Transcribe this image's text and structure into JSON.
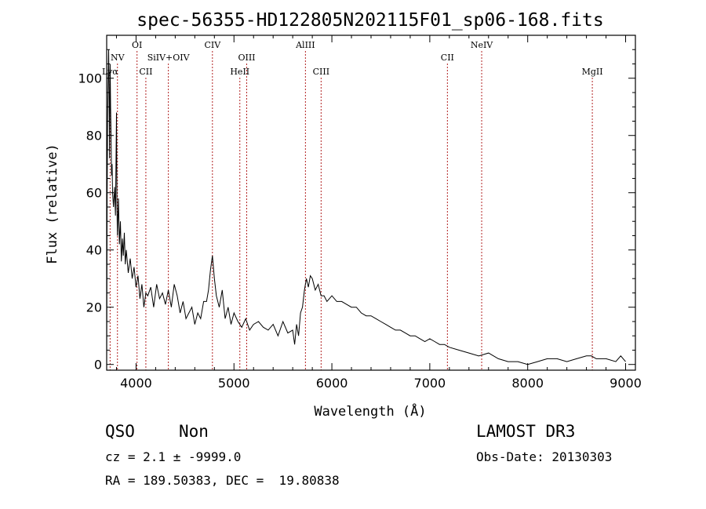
{
  "chart_data": {
    "type": "line",
    "title": "spec-56355-HD122805N202115F01_sp06-168.fits",
    "xlabel": "Wavelength (Å)",
    "ylabel": "Flux (relative)",
    "xlim": [
      3700,
      9100
    ],
    "ylim": [
      -2,
      115
    ],
    "xticks": [
      4000,
      5000,
      6000,
      7000,
      8000,
      9000
    ],
    "yticks": [
      0,
      20,
      40,
      60,
      80,
      100
    ],
    "grid": false,
    "series": [
      {
        "color": "#000000",
        "x": [
          3700,
          3705,
          3710,
          3715,
          3720,
          3725,
          3730,
          3735,
          3740,
          3745,
          3750,
          3755,
          3760,
          3770,
          3780,
          3790,
          3800,
          3805,
          3810,
          3820,
          3830,
          3840,
          3850,
          3860,
          3870,
          3880,
          3890,
          3900,
          3920,
          3940,
          3960,
          3980,
          4000,
          4020,
          4040,
          4060,
          4080,
          4100,
          4120,
          4150,
          4180,
          4210,
          4240,
          4270,
          4300,
          4330,
          4360,
          4390,
          4420,
          4450,
          4480,
          4510,
          4540,
          4570,
          4600,
          4630,
          4660,
          4690,
          4720,
          4740,
          4760,
          4780,
          4800,
          4820,
          4850,
          4880,
          4910,
          4940,
          4970,
          5000,
          5040,
          5080,
          5120,
          5160,
          5200,
          5250,
          5300,
          5350,
          5400,
          5450,
          5500,
          5550,
          5600,
          5620,
          5640,
          5660,
          5680,
          5700,
          5720,
          5740,
          5760,
          5780,
          5800,
          5830,
          5860,
          5890,
          5920,
          5950,
          6000,
          6050,
          6100,
          6150,
          6200,
          6250,
          6300,
          6350,
          6400,
          6450,
          6500,
          6550,
          6600,
          6650,
          6700,
          6750,
          6800,
          6850,
          6900,
          6950,
          7000,
          7050,
          7100,
          7150,
          7200,
          7300,
          7400,
          7500,
          7600,
          7700,
          7800,
          7900,
          8000,
          8100,
          8200,
          8300,
          8400,
          8500,
          8600,
          8650,
          8700,
          8800,
          8900,
          8950,
          9000
        ],
        "y": [
          2,
          60,
          85,
          100,
          110,
          95,
          72,
          105,
          90,
          80,
          66,
          70,
          60,
          55,
          62,
          52,
          88,
          55,
          45,
          58,
          42,
          50,
          36,
          44,
          38,
          46,
          35,
          40,
          32,
          37,
          30,
          34,
          27,
          31,
          23,
          28,
          20,
          25,
          24,
          27,
          20,
          28,
          23,
          25,
          21,
          26,
          20,
          28,
          24,
          18,
          22,
          16,
          18,
          20,
          14,
          18,
          16,
          22,
          22,
          26,
          33,
          38,
          30,
          24,
          20,
          26,
          16,
          20,
          14,
          18,
          15,
          13,
          16,
          12,
          14,
          15,
          13,
          12,
          14,
          10,
          15,
          11,
          12,
          7,
          14,
          10,
          18,
          20,
          26,
          30,
          27,
          31,
          30,
          26,
          28,
          24,
          24,
          22,
          24,
          22,
          22,
          21,
          20,
          20,
          18,
          17,
          17,
          16,
          15,
          14,
          13,
          12,
          12,
          11,
          10,
          10,
          9,
          8,
          9,
          8,
          7,
          7,
          6,
          5,
          4,
          3,
          4,
          2,
          1,
          1,
          0,
          1,
          2,
          2,
          1,
          2,
          3,
          3,
          2,
          2,
          1,
          3,
          1
        ]
      }
    ],
    "annotations": [
      {
        "label": "Lyα",
        "x": 3735,
        "row": 3
      },
      {
        "label": "NV",
        "x": 3810,
        "row": 2
      },
      {
        "label": "OI",
        "x": 4010,
        "row": 1
      },
      {
        "label": "CII",
        "x": 4100,
        "row": 3
      },
      {
        "label": "SiIV+OIV",
        "x": 4330,
        "row": 2
      },
      {
        "label": "CIV",
        "x": 4780,
        "row": 1
      },
      {
        "label": "HeII",
        "x": 5060,
        "row": 3
      },
      {
        "label": "OIII",
        "x": 5130,
        "row": 2
      },
      {
        "label": "AlIII",
        "x": 5730,
        "row": 1
      },
      {
        "label": "CIII",
        "x": 5890,
        "row": 3
      },
      {
        "label": "CII",
        "x": 7180,
        "row": 2
      },
      {
        "label": "NeIV",
        "x": 7530,
        "row": 1
      },
      {
        "label": "MgII",
        "x": 8660,
        "row": 3
      }
    ]
  },
  "info": {
    "class": "QSO",
    "subclass": "Non",
    "cz": "cz = 2.1 ± -9999.0",
    "radec": "RA = 189.50383, DEC =  19.80838",
    "survey": "LAMOST DR3",
    "obsdate": "Obs-Date: 20130303"
  },
  "colors": {
    "line_marker": "#b22222",
    "spectrum": "#000000"
  }
}
